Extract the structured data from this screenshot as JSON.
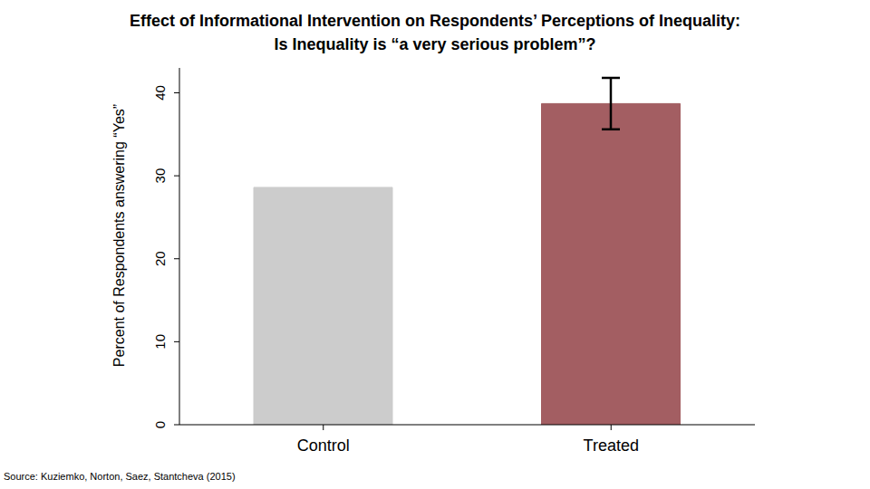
{
  "chart_data": {
    "type": "bar",
    "title": "Effect of Informational Intervention on Respondents’ Perceptions of Inequality:",
    "subtitle": "Is Inequality is “a very serious problem”?",
    "y_label": "Percent of Respondents answering “Yes”",
    "source": "Source: Kuziemko, Norton, Saez, Stantcheva (2015)",
    "categories": [
      "Control",
      "Treated"
    ],
    "values": [
      28.6,
      38.7
    ],
    "errors": [
      null,
      3.1
    ],
    "colors": [
      "#cccccc",
      "#a35e62"
    ],
    "ylim": [
      0,
      43
    ],
    "yticks": [
      0,
      10,
      20,
      30,
      40
    ],
    "grid": false
  }
}
